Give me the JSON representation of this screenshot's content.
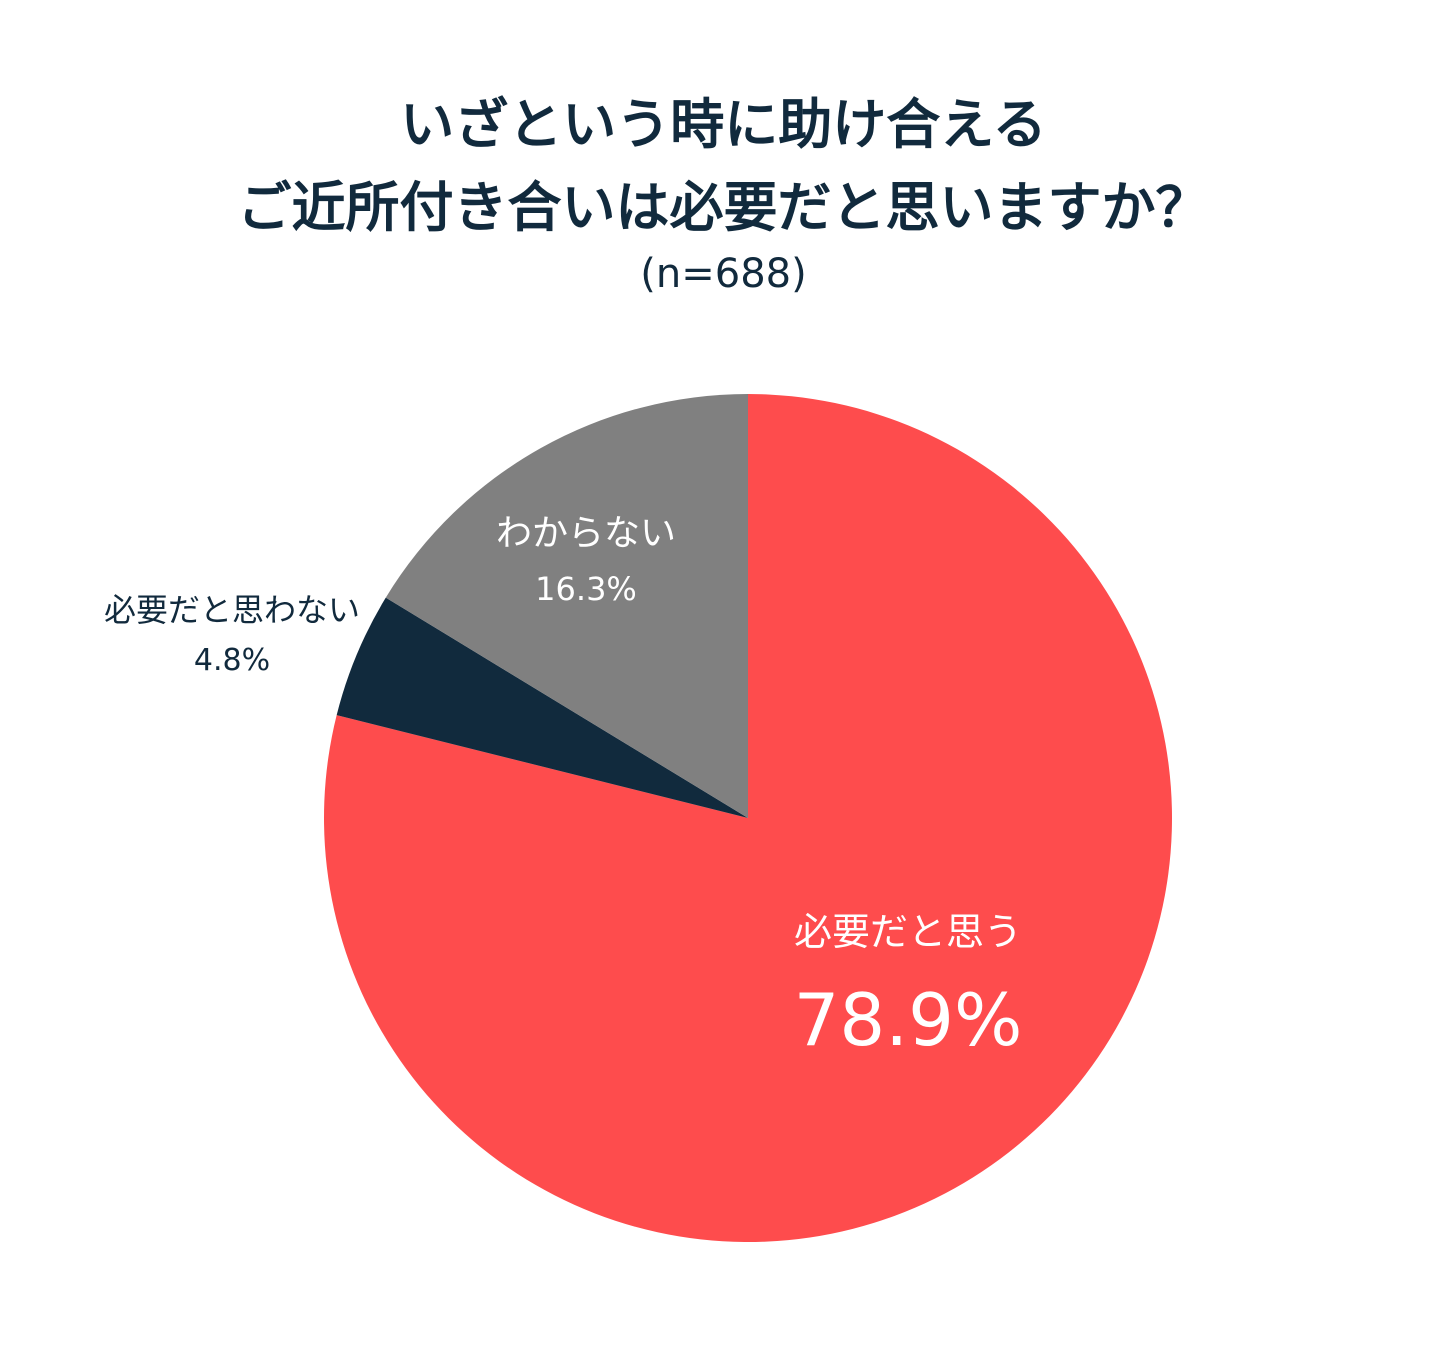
{
  "chart_data": {
    "type": "pie",
    "title": [
      "いざという時に助け合える",
      "ご近所付き合いは必要だと思いますか？"
    ],
    "subtitle": "(n=688)",
    "start_angle_deg": 0,
    "direction": "clockwise",
    "slices": [
      {
        "label": "必要だと思う",
        "value": 78.9,
        "value_label": "78.9%",
        "color": "#fe4c4d"
      },
      {
        "label": "必要だと思わない",
        "value": 4.8,
        "value_label": "4.8%",
        "color": "#112a3d"
      },
      {
        "label": "わからない",
        "value": 16.3,
        "value_label": "16.3%",
        "color": "#808080"
      }
    ]
  }
}
